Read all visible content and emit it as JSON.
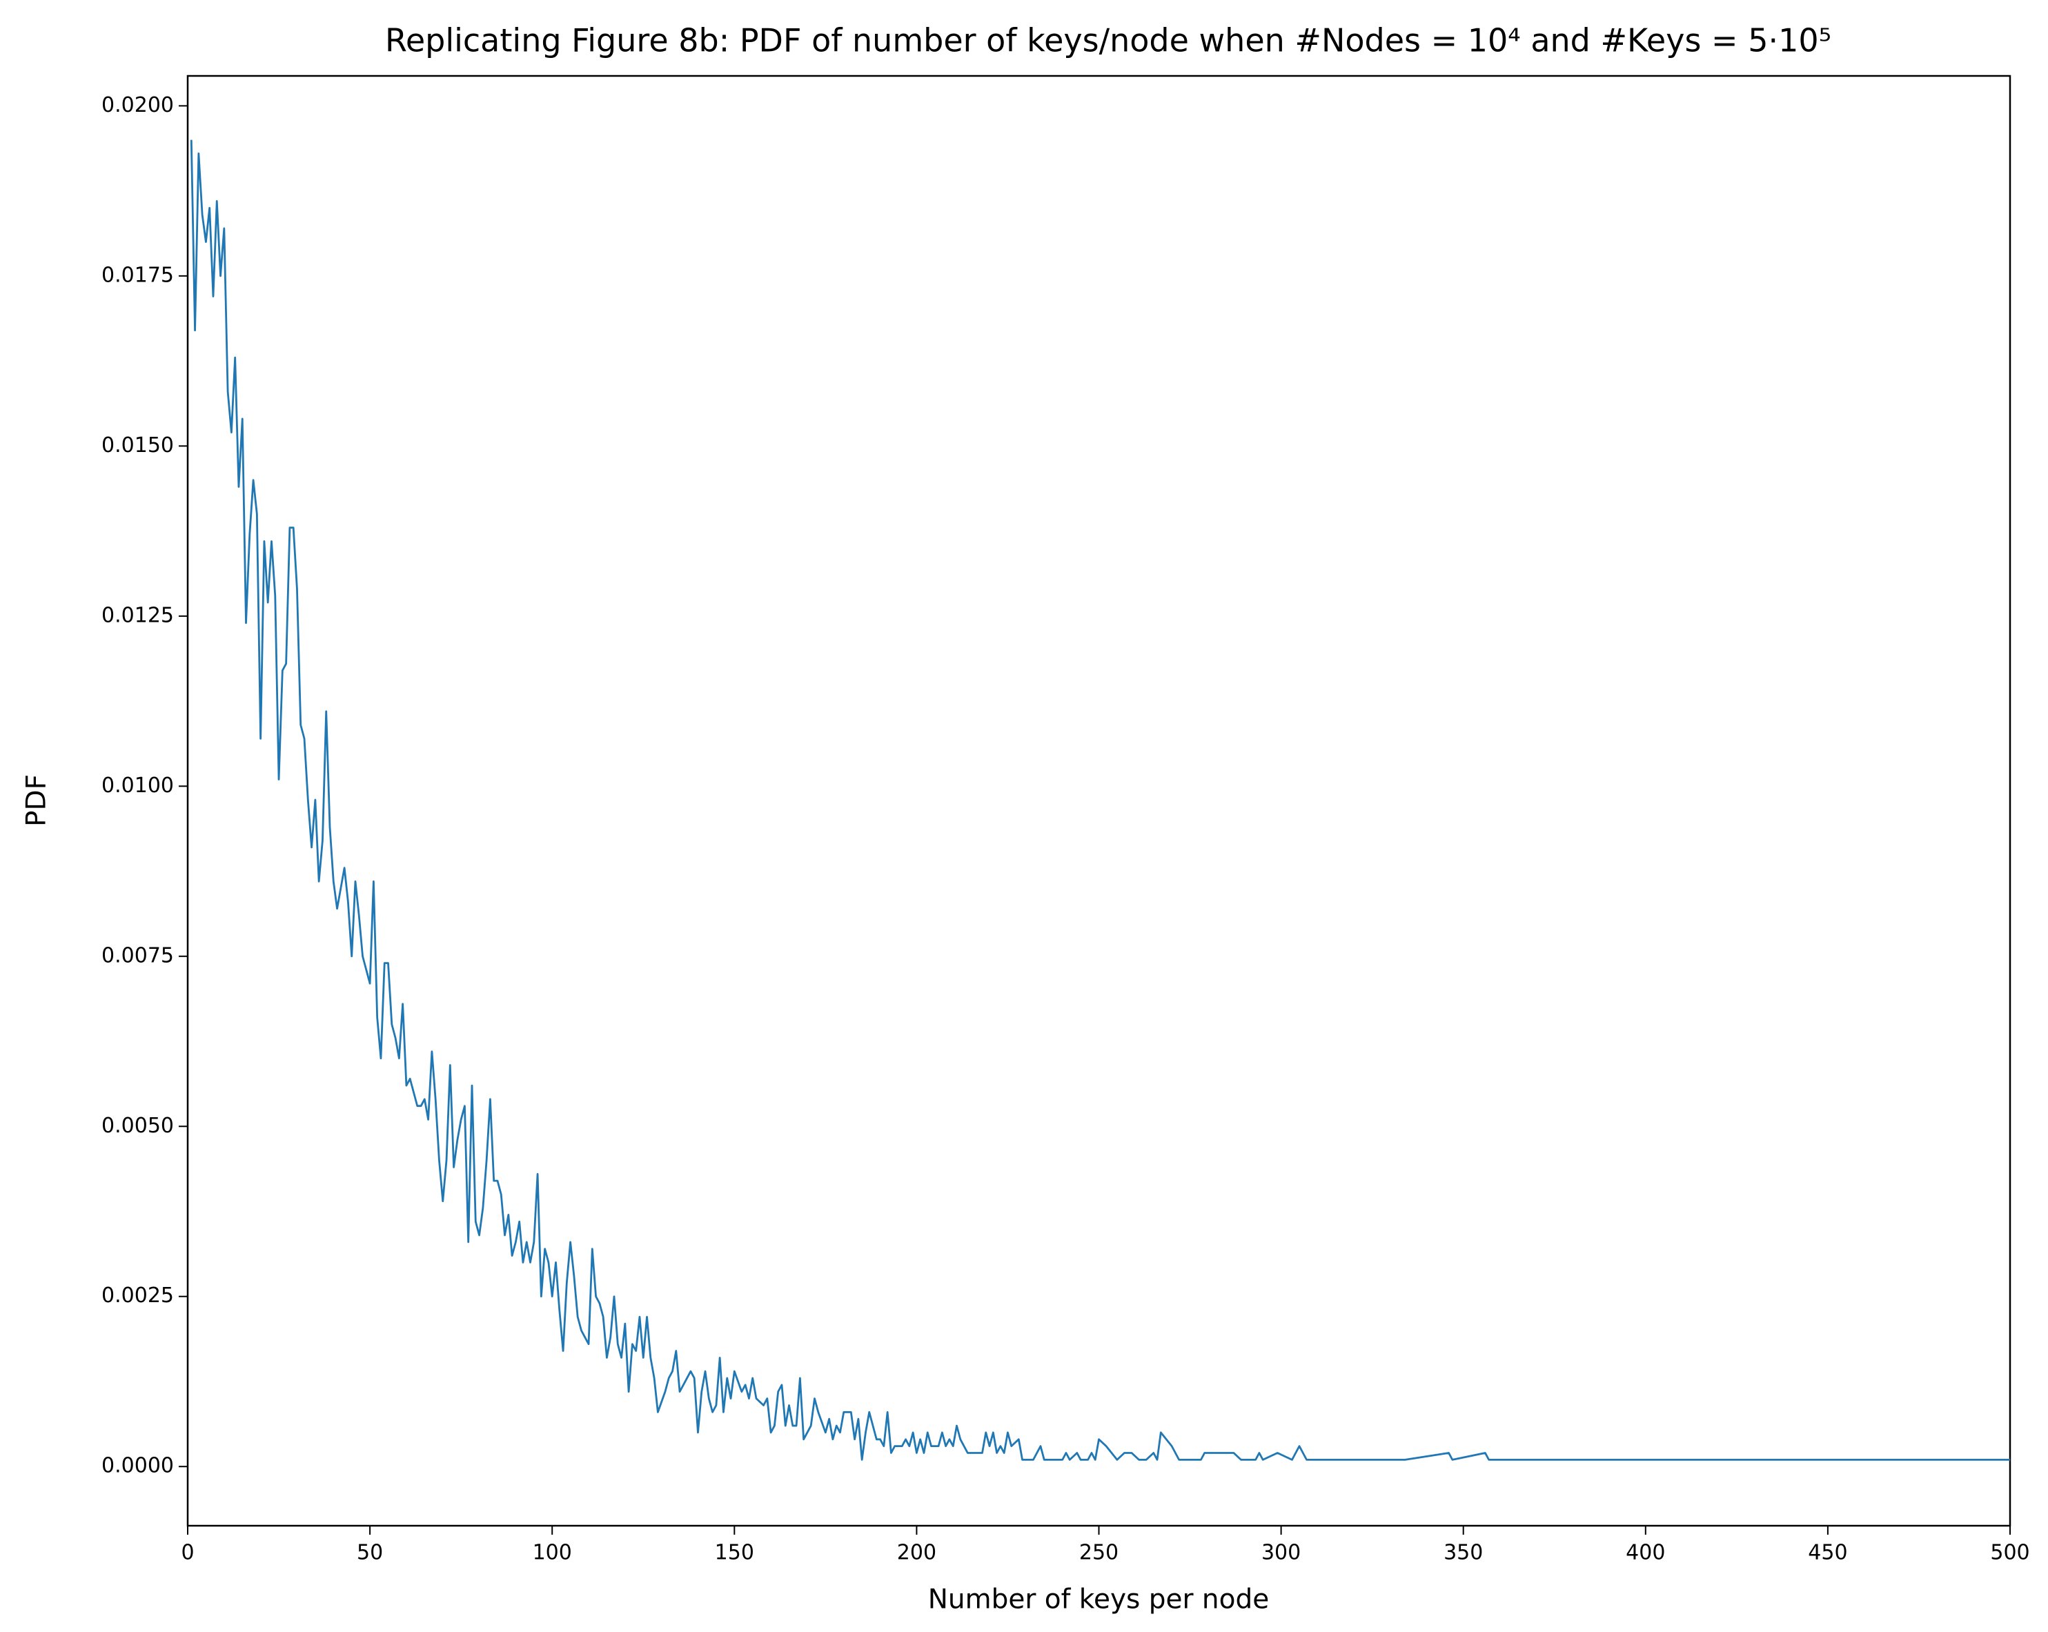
{
  "chart_data": {
    "type": "line",
    "title": "Replicating Figure 8b: PDF of number of keys/node when #Nodes = 10⁴ and #Keys = 5·10⁵",
    "x_label": "Number of keys per node",
    "y_label": "PDF",
    "x": [
      1,
      2,
      3,
      4,
      5,
      6,
      7,
      8,
      9,
      10,
      11,
      12,
      13,
      14,
      15,
      16,
      17,
      18,
      19,
      20,
      21,
      22,
      23,
      24,
      25,
      26,
      27,
      28,
      29,
      30,
      31,
      32,
      33,
      34,
      35,
      36,
      37,
      38,
      39,
      40,
      41,
      42,
      43,
      44,
      45,
      46,
      47,
      48,
      49,
      50,
      51,
      52,
      53,
      54,
      55,
      56,
      57,
      58,
      59,
      60,
      61,
      62,
      63,
      64,
      65,
      66,
      67,
      68,
      69,
      70,
      71,
      72,
      73,
      74,
      75,
      76,
      77,
      78,
      79,
      80,
      81,
      82,
      83,
      84,
      85,
      86,
      87,
      88,
      89,
      90,
      91,
      92,
      93,
      94,
      95,
      96,
      97,
      98,
      99,
      100,
      101,
      102,
      103,
      104,
      105,
      106,
      107,
      108,
      110,
      111,
      112,
      113,
      114,
      115,
      116,
      117,
      118,
      119,
      120,
      121,
      122,
      123,
      124,
      125,
      126,
      127,
      128,
      129,
      131,
      132,
      133,
      134,
      135,
      137,
      138,
      139,
      140,
      141,
      142,
      143,
      144,
      145,
      146,
      147,
      148,
      149,
      150,
      152,
      153,
      154,
      155,
      156,
      158,
      159,
      160,
      161,
      162,
      163,
      164,
      165,
      166,
      167,
      168,
      169,
      171,
      172,
      173,
      175,
      176,
      177,
      178,
      179,
      180,
      181,
      182,
      183,
      184,
      185,
      186,
      187,
      189,
      190,
      191,
      192,
      193,
      194,
      196,
      197,
      198,
      199,
      200,
      201,
      202,
      203,
      204,
      206,
      207,
      208,
      209,
      210,
      211,
      212,
      214,
      218,
      219,
      220,
      221,
      222,
      223,
      224,
      225,
      226,
      228,
      229,
      232,
      234,
      235,
      240,
      241,
      242,
      244,
      245,
      247,
      248,
      249,
      250,
      252,
      255,
      257,
      259,
      261,
      263,
      265,
      266,
      267,
      270,
      272,
      278,
      279,
      287,
      289,
      293,
      294,
      295,
      299,
      303,
      305,
      307,
      334,
      346,
      347,
      356,
      357,
      500
    ],
    "series": [
      {
        "name": "PDF",
        "color": "#1f77b4",
        "values": [
          0.0195,
          0.0167,
          0.0193,
          0.0184,
          0.018,
          0.0185,
          0.0172,
          0.0186,
          0.0175,
          0.0182,
          0.0158,
          0.0152,
          0.0163,
          0.0144,
          0.0154,
          0.0124,
          0.0137,
          0.0145,
          0.014,
          0.0107,
          0.0136,
          0.0127,
          0.0136,
          0.0128,
          0.0101,
          0.0117,
          0.0118,
          0.0138,
          0.0138,
          0.0129,
          0.0109,
          0.0107,
          0.0098,
          0.0091,
          0.0098,
          0.0086,
          0.0092,
          0.0111,
          0.0094,
          0.0086,
          0.0082,
          0.0085,
          0.0088,
          0.0083,
          0.0075,
          0.0086,
          0.0081,
          0.0075,
          0.0073,
          0.0071,
          0.0086,
          0.0066,
          0.006,
          0.0074,
          0.0074,
          0.0065,
          0.0063,
          0.006,
          0.0068,
          0.0056,
          0.0057,
          0.0055,
          0.0053,
          0.0053,
          0.0054,
          0.0051,
          0.0061,
          0.0054,
          0.0045,
          0.0039,
          0.0045,
          0.0059,
          0.0044,
          0.0048,
          0.0051,
          0.0053,
          0.0033,
          0.0056,
          0.0036,
          0.0034,
          0.0038,
          0.0045,
          0.0054,
          0.0042,
          0.0042,
          0.004,
          0.0034,
          0.0037,
          0.0031,
          0.0033,
          0.0036,
          0.003,
          0.0033,
          0.003,
          0.0033,
          0.0043,
          0.0025,
          0.0032,
          0.003,
          0.0025,
          0.003,
          0.0023,
          0.0017,
          0.0027,
          0.0033,
          0.0028,
          0.0022,
          0.002,
          0.0018,
          0.0032,
          0.0025,
          0.0024,
          0.0022,
          0.0016,
          0.0019,
          0.0025,
          0.0018,
          0.0016,
          0.0021,
          0.0011,
          0.0018,
          0.0017,
          0.0022,
          0.0016,
          0.0022,
          0.0016,
          0.0013,
          0.0008,
          0.0011,
          0.0013,
          0.0014,
          0.0017,
          0.0011,
          0.0013,
          0.0014,
          0.0013,
          0.0005,
          0.0011,
          0.0014,
          0.001,
          0.0008,
          0.0009,
          0.0016,
          0.0008,
          0.0013,
          0.001,
          0.0014,
          0.0011,
          0.0012,
          0.001,
          0.0013,
          0.001,
          0.0009,
          0.001,
          0.0005,
          0.0006,
          0.0011,
          0.0012,
          0.0006,
          0.0009,
          0.0006,
          0.0006,
          0.0013,
          0.0004,
          0.0006,
          0.001,
          0.0008,
          0.0005,
          0.0007,
          0.0004,
          0.0006,
          0.0005,
          0.0008,
          0.0008,
          0.0008,
          0.0004,
          0.0007,
          0.0001,
          0.0005,
          0.0008,
          0.0004,
          0.0004,
          0.0003,
          0.0008,
          0.0002,
          0.0003,
          0.0003,
          0.0004,
          0.0003,
          0.0005,
          0.0002,
          0.0004,
          0.0002,
          0.0005,
          0.0003,
          0.0003,
          0.0005,
          0.0003,
          0.0004,
          0.0003,
          0.0006,
          0.0004,
          0.0002,
          0.0002,
          0.0005,
          0.0003,
          0.0005,
          0.0002,
          0.0003,
          0.0002,
          0.0005,
          0.0003,
          0.0004,
          0.0001,
          0.0001,
          0.0003,
          0.0001,
          0.0001,
          0.0002,
          0.0001,
          0.0002,
          0.0001,
          0.0001,
          0.0002,
          0.0001,
          0.0004,
          0.0003,
          0.0001,
          0.0002,
          0.0002,
          0.0001,
          0.0001,
          0.0002,
          0.0001,
          0.0005,
          0.0003,
          0.0001,
          0.0001,
          0.0002,
          0.0002,
          0.0001,
          0.0001,
          0.0002,
          0.0001,
          0.0002,
          0.0001,
          0.0003,
          0.0001,
          0.0001,
          0.0002,
          0.0001,
          0.0002,
          0.0001,
          0.0001
        ]
      }
    ],
    "xlim": [
      0,
      500
    ],
    "xticks": [
      0,
      50,
      100,
      150,
      200,
      250,
      300,
      350,
      400,
      450,
      500
    ],
    "ylim": [
      -0.00087,
      0.02044
    ],
    "yticks": [
      {
        "value": 0,
        "label": "0.0000"
      },
      {
        "value": 0.0025,
        "label": "0.0025"
      },
      {
        "value": 0.005,
        "label": "0.0050"
      },
      {
        "value": 0.0075,
        "label": "0.0075"
      },
      {
        "value": 0.01,
        "label": "0.0100"
      },
      {
        "value": 0.0125,
        "label": "0.0125"
      },
      {
        "value": 0.015,
        "label": "0.0150"
      },
      {
        "value": 0.0175,
        "label": "0.0175"
      },
      {
        "value": 0.02,
        "label": "0.0200"
      }
    ],
    "grid": false
  }
}
